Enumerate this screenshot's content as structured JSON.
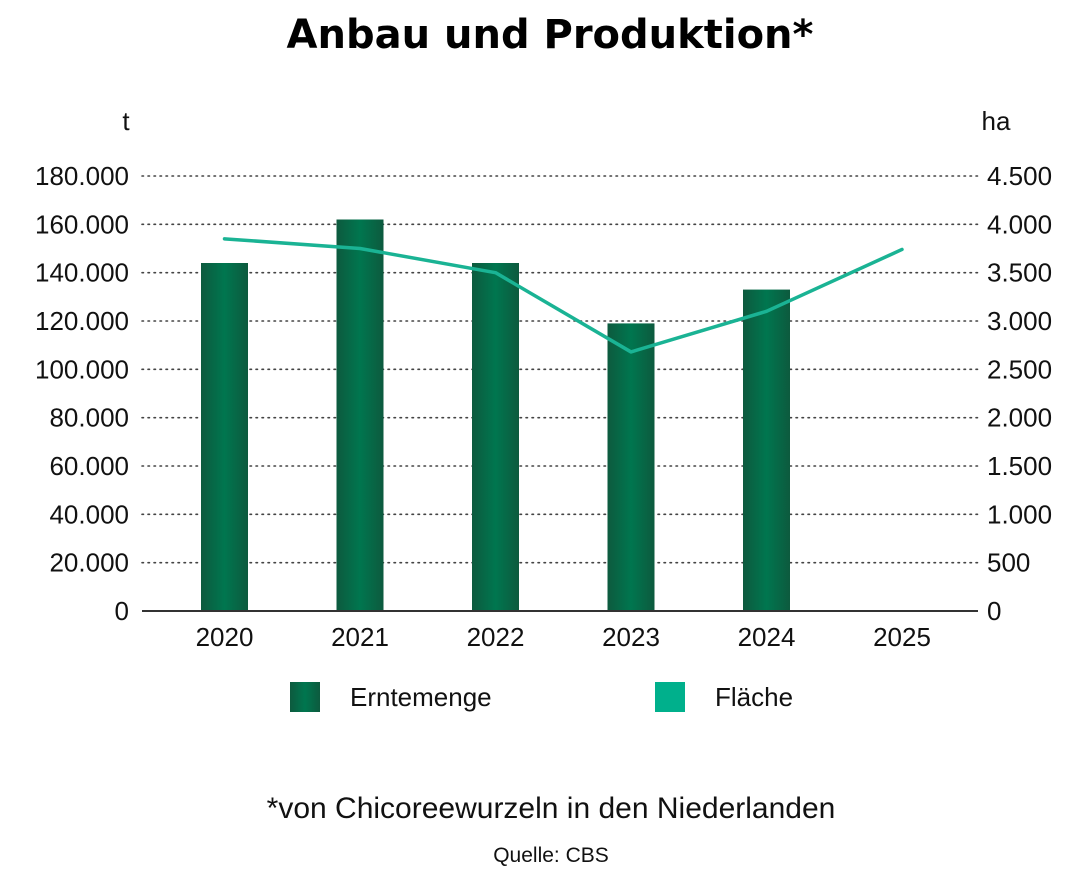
{
  "chart_data": {
    "type": "bar",
    "title": "Anbau und Produktion*",
    "footnote": "*von Chicoreewurzeln in den Niederlanden",
    "source": "Quelle: CBS",
    "categories": [
      "2020",
      "2021",
      "2022",
      "2023",
      "2024",
      "2025"
    ],
    "left_axis": {
      "unit": "t",
      "ylim": [
        0,
        180000
      ],
      "ticks": [
        0,
        20000,
        40000,
        60000,
        80000,
        100000,
        120000,
        140000,
        160000,
        180000
      ],
      "tick_labels": [
        "0",
        "20.000",
        "40.000",
        "60.000",
        "80.000",
        "100.000",
        "120.000",
        "140.000",
        "160.000",
        "180.000"
      ]
    },
    "right_axis": {
      "unit": "ha",
      "ylim": [
        0,
        4500
      ],
      "ticks": [
        0,
        500,
        1000,
        1500,
        2000,
        2500,
        3000,
        3500,
        4000,
        4500
      ],
      "tick_labels": [
        "0",
        "500",
        "1.000",
        "1.500",
        "2.000",
        "2.500",
        "3.000",
        "3.500",
        "4.000",
        "4.500"
      ]
    },
    "series": [
      {
        "name": "Erntemenge",
        "type": "bar",
        "axis": "left",
        "color": "#00704a",
        "values": [
          144000,
          162000,
          144000,
          119000,
          133000,
          null
        ]
      },
      {
        "name": "Fläche",
        "type": "line",
        "axis": "right",
        "color": "#1ab394",
        "values": [
          3850,
          3750,
          3500,
          2680,
          3100,
          3740
        ]
      }
    ],
    "grid": "horizontal dotted",
    "legend": "bottom"
  }
}
